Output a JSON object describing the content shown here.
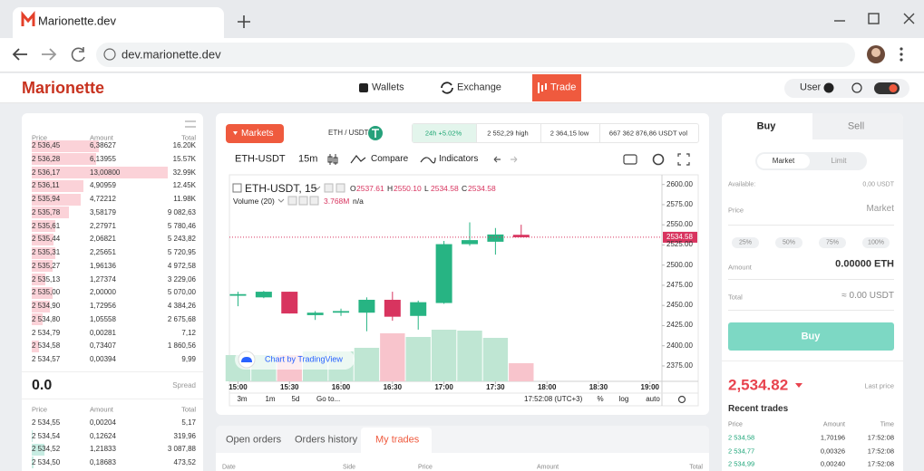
{
  "browser": {
    "tab_title": "Marionette.dev",
    "url": "dev.marionette.dev"
  },
  "header": {
    "logo": "Marionette",
    "nav": [
      "Wallets",
      "Exchange",
      "Trade"
    ],
    "user": "User"
  },
  "order_book": {
    "columns": [
      "Price",
      "Amount",
      "Total"
    ],
    "asks": [
      [
        "2 536,45",
        "6,38627",
        "16.20K"
      ],
      [
        "2 536,28",
        "6,13955",
        "15.57K"
      ],
      [
        "2 536,17",
        "13,00800",
        "32.99K"
      ],
      [
        "2 536,11",
        "4,90959",
        "12.45K"
      ],
      [
        "2 535,94",
        "4,72212",
        "11.98K"
      ],
      [
        "2 535,78",
        "3,58179",
        "9 082,63"
      ],
      [
        "2 535,61",
        "2,27971",
        "5 780,46"
      ],
      [
        "2 535,44",
        "2,06821",
        "5 243,82"
      ],
      [
        "2 535,31",
        "2,25651",
        "5 720,95"
      ],
      [
        "2 535,27",
        "1,96136",
        "4 972,58"
      ],
      [
        "2 535,13",
        "1,27374",
        "3 229,06"
      ],
      [
        "2 535,00",
        "2,00000",
        "5 070,00"
      ],
      [
        "2 534,90",
        "1,72956",
        "4 384,26"
      ],
      [
        "2 534,80",
        "1,05558",
        "2 675,68"
      ],
      [
        "2 534,79",
        "0,00281",
        "7,12"
      ],
      [
        "2 534,58",
        "0,73407",
        "1 860,56"
      ],
      [
        "2 534,57",
        "0,00394",
        "9,99"
      ]
    ],
    "spread": {
      "price": "0.0",
      "label": "Spread"
    },
    "bids_columns": [
      "Price",
      "Amount",
      "Total"
    ],
    "bids": [
      [
        "2 534,55",
        "0,00204",
        "5,17"
      ],
      [
        "2 534,54",
        "0,12624",
        "319,96"
      ],
      [
        "2 534,52",
        "1,21833",
        "3 087,88"
      ],
      [
        "2 534,50",
        "0,18683",
        "473,52"
      ]
    ]
  },
  "market": {
    "button": "Markets",
    "pair": "ETH / USDT",
    "stats": [
      "24h +5.02%",
      "2 552,29 high",
      "2 364,15 low",
      "667 362 876,86 USDT vol"
    ]
  },
  "toolbar": {
    "symbol": "ETH-USDT",
    "interval": "15m",
    "compare": "Compare",
    "indicators": "Indicators"
  },
  "chart_data": {
    "type": "candlestick",
    "title": "ETH-USDT, 15",
    "legend": [
      {
        "label": "O",
        "value": "2537.61"
      },
      {
        "label": "H",
        "value": "2550.10"
      },
      {
        "label": "L",
        "value": "2534.58"
      },
      {
        "label": "C",
        "value": "2534.58"
      }
    ],
    "volume_title": "Volume (20)",
    "volume_legend": [
      "3.768M",
      "n/a"
    ],
    "categories": [
      "15:00",
      "15:15",
      "15:30",
      "15:45",
      "16:00",
      "16:15",
      "16:30",
      "16:45",
      "17:00",
      "17:15",
      "17:30",
      "17:45"
    ],
    "open": [
      2462,
      2460,
      2467,
      2438,
      2441,
      2441,
      2457,
      2437,
      2453,
      2526,
      2529,
      2537.61
    ],
    "high": [
      2467,
      2468,
      2467,
      2443,
      2446,
      2460,
      2467,
      2456,
      2530,
      2553,
      2546,
      2550.1
    ],
    "low": [
      2449,
      2459,
      2440,
      2432,
      2437,
      2418,
      2431,
      2420,
      2452,
      2524,
      2513,
      2534.58
    ],
    "close": [
      2464,
      2467,
      2440,
      2441,
      2443,
      2457,
      2436,
      2454,
      2526,
      2531,
      2538,
      2534.58
    ],
    "volume": [
      5460000,
      5460000,
      5460000,
      6220000,
      6220000,
      6970000,
      9990000,
      9230000,
      10740000,
      10550000,
      9040000,
      3768000
    ],
    "up_color": "#27b483",
    "down_color": "#d8345f",
    "volume_up_color": "#bfe6d3",
    "volume_down_color": "#f8c4cc",
    "xlim": [
      "14:55",
      "19:07"
    ],
    "xticks": [
      "15:00",
      "15:30",
      "16:00",
      "16:30",
      "17:00",
      "17:30",
      "18:00",
      "18:30",
      "19:00"
    ],
    "ylim": [
      2348,
      2612
    ],
    "yticks": [
      {
        "value": 2375,
        "label": "2375.00"
      },
      {
        "value": 2400,
        "label": "2400.00"
      },
      {
        "value": 2425,
        "label": "2425.00"
      },
      {
        "value": 2450,
        "label": "2450.00"
      },
      {
        "value": 2475,
        "label": "2475.00"
      },
      {
        "value": 2500,
        "label": "2500.00"
      },
      {
        "value": 2525,
        "label": "2525.00"
      },
      {
        "value": 2550,
        "label": "2550.00"
      },
      {
        "value": 2575,
        "label": "2575.00"
      },
      {
        "value": 2600,
        "label": "2600.00"
      }
    ],
    "watermark": "Chart by TradingView",
    "ranges": [
      "3m",
      "1m",
      "5d"
    ],
    "goto": "Go to...",
    "clock": "17:52:08 (UTC+3)",
    "scale_options": [
      "%",
      "log",
      "auto"
    ]
  },
  "orders": {
    "tabs": [
      "Open orders",
      "Orders history",
      "My trades"
    ],
    "columns": [
      "Date",
      "Side",
      "Price",
      "Amount",
      "Total"
    ]
  },
  "trade_form": {
    "tabs": [
      "Buy",
      "Sell"
    ],
    "modes": [
      "Market",
      "Limit"
    ],
    "available_label": "Available:",
    "available": "0,00 USDT",
    "price_label": "Price",
    "price": "Market",
    "percents": [
      "25%",
      "50%",
      "75%",
      "100%"
    ],
    "amount_label": "Amount",
    "amount": "0.00000  ETH",
    "total_label": "Total",
    "total": "≈ 0.00 USDT",
    "submit": "Buy"
  },
  "last_price": {
    "value": "2,534.82",
    "label": "Last price"
  },
  "recent_trades": {
    "title": "Recent trades",
    "columns": [
      "Price",
      "Amount",
      "Time"
    ],
    "rows": [
      [
        "2 534,58",
        "1,70196",
        "17:52:08"
      ],
      [
        "2 534,77",
        "0,00326",
        "17:52:08"
      ],
      [
        "2 534,99",
        "0,00240",
        "17:52:08"
      ]
    ]
  }
}
